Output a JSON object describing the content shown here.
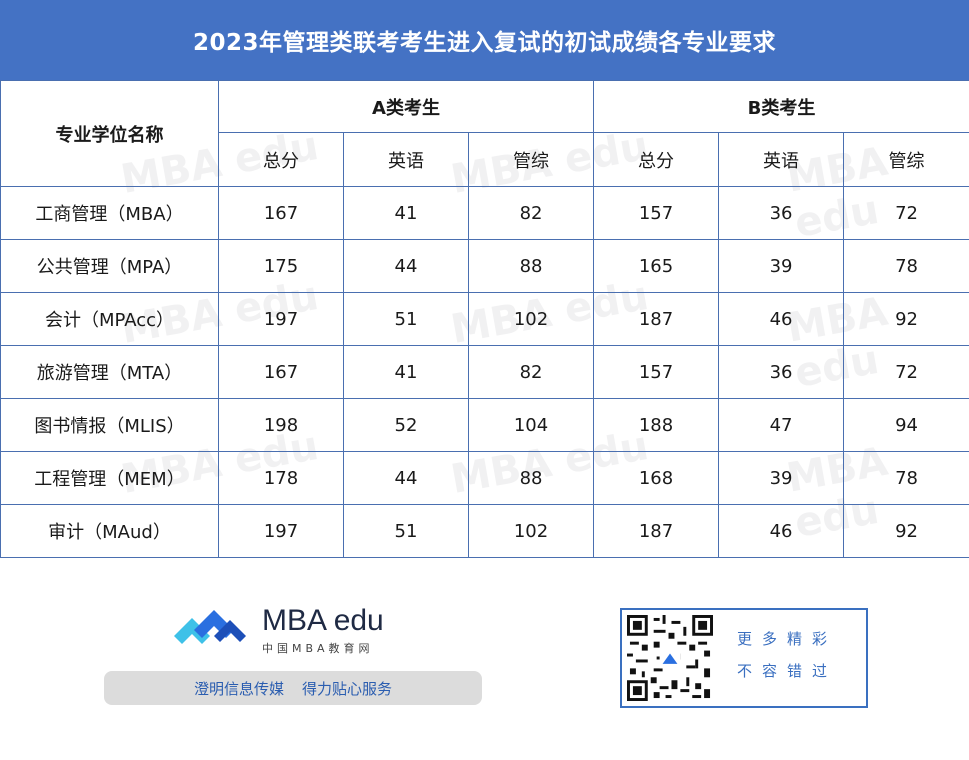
{
  "title": "2023年管理类联考考生进入复试的初试成绩各专业要求",
  "table": {
    "corner_header": "专业学位名称",
    "groups": [
      "A类考生",
      "B类考生"
    ],
    "subheaders": [
      "总分",
      "英语",
      "管综",
      "总分",
      "英语",
      "管综"
    ],
    "rows": [
      {
        "name": "工商管理（MBA）",
        "values": [
          "167",
          "41",
          "82",
          "157",
          "36",
          "72"
        ]
      },
      {
        "name": "公共管理（MPA）",
        "values": [
          "175",
          "44",
          "88",
          "165",
          "39",
          "78"
        ]
      },
      {
        "name": "会计（MPAcc）",
        "values": [
          "197",
          "51",
          "102",
          "187",
          "46",
          "92"
        ]
      },
      {
        "name": "旅游管理（MTA）",
        "values": [
          "167",
          "41",
          "82",
          "157",
          "36",
          "72"
        ]
      },
      {
        "name": "图书情报（MLIS）",
        "values": [
          "198",
          "52",
          "104",
          "188",
          "47",
          "94"
        ]
      },
      {
        "name": "工程管理（MEM）",
        "values": [
          "178",
          "44",
          "88",
          "168",
          "39",
          "78"
        ]
      },
      {
        "name": "审计（MAud）",
        "values": [
          "197",
          "51",
          "102",
          "187",
          "46",
          "92"
        ]
      }
    ]
  },
  "footer": {
    "brand": "MBA edu",
    "brand_sub": "中国MBA教育网",
    "slogan_left": "澄明信息传媒",
    "slogan_right": "得力贴心服务",
    "qr_line1": "更多精彩",
    "qr_line2": "不容错过"
  },
  "watermark_text": "MBA edu",
  "colors": {
    "title_bg": "#4472c4",
    "border": "#4a6fb0",
    "accent_text": "#2a5db0"
  }
}
